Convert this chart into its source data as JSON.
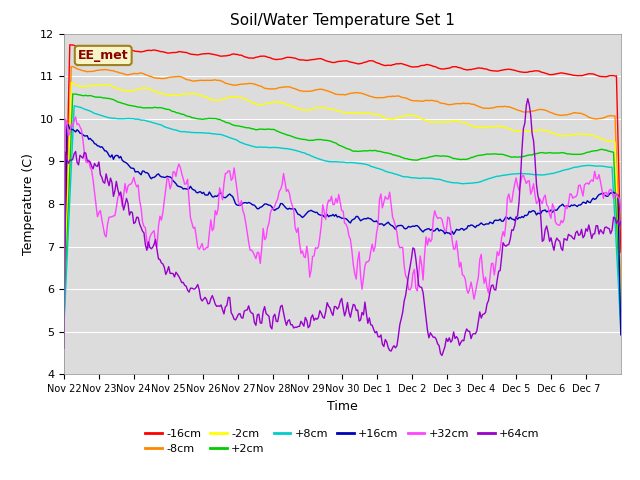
{
  "title": "Soil/Water Temperature Set 1",
  "xlabel": "Time",
  "ylabel": "Temperature (C)",
  "ylim": [
    4.0,
    12.0
  ],
  "yticks": [
    4.0,
    5.0,
    6.0,
    7.0,
    8.0,
    9.0,
    10.0,
    11.0,
    12.0
  ],
  "xtick_labels": [
    "Nov 22",
    "Nov 23",
    "Nov 24",
    "Nov 25",
    "Nov 26",
    "Nov 27",
    "Nov 28",
    "Nov 29",
    "Nov 30",
    "Dec 1",
    "Dec 2",
    "Dec 3",
    "Dec 4",
    "Dec 5",
    "Dec 6",
    "Dec 7"
  ],
  "annotation": "EE_met",
  "plot_bg": "#dcdcdc",
  "fig_bg": "#ffffff",
  "lines": [
    {
      "label": "-16cm",
      "color": "#ff0000"
    },
    {
      "label": "-8cm",
      "color": "#ff8800"
    },
    {
      "label": "-2cm",
      "color": "#ffff00"
    },
    {
      "label": "+2cm",
      "color": "#00cc00"
    },
    {
      "label": "+8cm",
      "color": "#00cccc"
    },
    {
      "label": "+16cm",
      "color": "#0000bb"
    },
    {
      "label": "+32cm",
      "color": "#ff44ff"
    },
    {
      "label": "+64cm",
      "color": "#9900cc"
    }
  ]
}
